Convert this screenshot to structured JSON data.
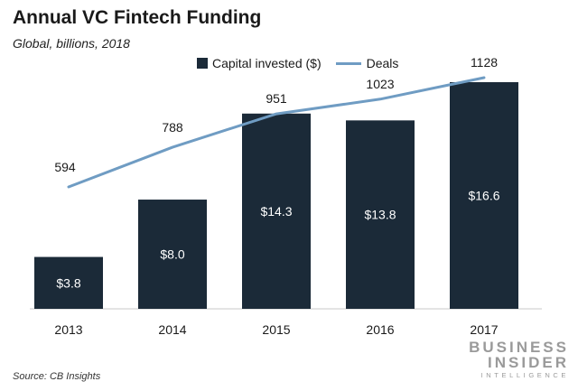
{
  "chart_data": {
    "type": "bar",
    "title": "Annual VC Fintech Funding",
    "subtitle": "Global, billions, 2018",
    "categories": [
      "2013",
      "2014",
      "2015",
      "2016",
      "2017"
    ],
    "series": [
      {
        "name": "Capital invested ($)",
        "type": "bar",
        "values": [
          3.8,
          8.0,
          14.3,
          13.8,
          16.6
        ],
        "labels": [
          "$3.8",
          "$8.0",
          "$14.3",
          "$13.8",
          "$16.6"
        ],
        "color": "#1b2a38"
      },
      {
        "name": "Deals",
        "type": "line",
        "values": [
          594,
          788,
          951,
          1023,
          1128
        ],
        "labels": [
          "594",
          "788",
          "951",
          "1023",
          "1128"
        ],
        "color": "#6f9cc3"
      }
    ],
    "ylim": [
      0,
      16.6
    ],
    "y2lim": [
      400,
      1128
    ],
    "legend": "top-center",
    "grid": false
  },
  "footer": {
    "source": "Source: CB Insights",
    "brand_line1": "BUSINESS",
    "brand_line2": "INSIDER",
    "brand_line3": "INTELLIGENCE"
  }
}
